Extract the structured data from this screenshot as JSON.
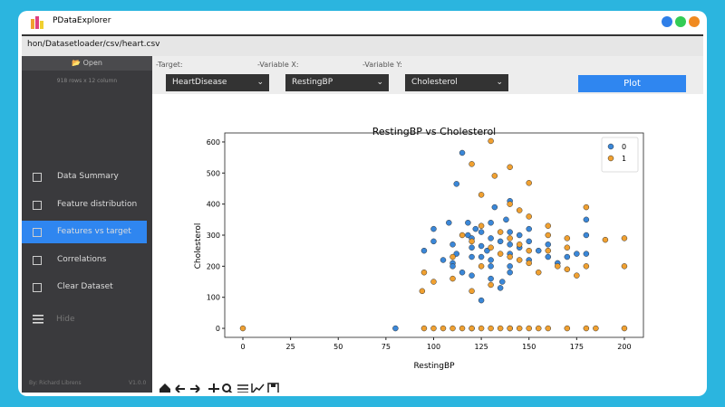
{
  "window": {
    "title": "PDataExplorer"
  },
  "loader": {
    "path": "hon/Datasetloader/csv/heart.csv",
    "open": "Open",
    "info": "918 rows x 12 column"
  },
  "controls": {
    "target_label": "-Target:",
    "x_label": "-Variable X:",
    "y_label": "-Variable Y:",
    "target": "HeartDisease",
    "x": "RestingBP",
    "y": "Cholesterol",
    "plot": "Plot"
  },
  "menu": {
    "items": [
      "Data Summary",
      "Feature distribution",
      "Features vs target",
      "Correlations",
      "Clear Dataset"
    ],
    "hide": "Hide",
    "author": "By: Richard Librens",
    "version": "V1.0.0"
  },
  "chart_data": {
    "type": "scatter",
    "title": "RestingBP vs Cholesterol",
    "x_label": "RestingBP",
    "y_label": "Cholesterol",
    "xlim": [
      -9.5,
      210
    ],
    "xticks": [
      0,
      25,
      50,
      75,
      100,
      125,
      150,
      175,
      200
    ],
    "ylim": [
      -29,
      629
    ],
    "yticks": [
      0,
      100,
      200,
      300,
      400,
      500,
      600
    ],
    "legend": "upper right",
    "series": [
      {
        "name": "0",
        "color": "#3a87d8",
        "x": [
          110,
          120,
          130,
          140,
          120,
          130,
          125,
          115,
          140,
          150,
          135,
          128,
          118,
          145,
          160,
          112,
          122,
          138,
          130,
          140,
          120,
          125,
          150,
          155,
          110,
          100,
          105,
          95,
          108,
          130,
          120,
          140,
          132,
          140,
          118,
          145,
          160,
          170,
          180,
          180,
          112,
          115,
          130,
          135,
          125,
          110,
          140,
          150,
          125,
          180,
          80,
          175,
          165,
          136,
          100,
          120,
          140
        ],
        "values": [
          210,
          260,
          290,
          310,
          230,
          200,
          265,
          180,
          240,
          220,
          280,
          250,
          300,
          260,
          230,
          240,
          320,
          350,
          220,
          200,
          290,
          310,
          280,
          250,
          270,
          280,
          220,
          250,
          340,
          160,
          170,
          180,
          390,
          410,
          340,
          300,
          270,
          230,
          350,
          300,
          465,
          565,
          340,
          130,
          90,
          200,
          270,
          320,
          230,
          240,
          0,
          240,
          210,
          150,
          320,
          0,
          0
        ]
      },
      {
        "name": "1",
        "color": "#f0a030",
        "x": [
          130,
          120,
          140,
          132,
          150,
          125,
          140,
          145,
          150,
          160,
          170,
          180,
          190,
          200,
          200,
          160,
          170,
          140,
          150,
          130,
          120,
          110,
          115,
          125,
          135,
          145,
          155,
          130,
          120,
          100,
          95,
          94,
          110,
          140,
          150,
          160,
          170,
          180,
          125,
          135,
          145,
          0,
          95,
          100,
          110,
          115,
          120,
          125,
          130,
          135,
          140,
          145,
          150,
          155,
          160,
          170,
          180,
          185,
          200,
          105,
          165,
          175
        ],
        "values": [
          603,
          529,
          519,
          491,
          468,
          430,
          400,
          380,
          360,
          330,
          290,
          390,
          285,
          290,
          200,
          250,
          260,
          230,
          210,
          260,
          280,
          230,
          300,
          200,
          310,
          270,
          180,
          140,
          120,
          150,
          180,
          120,
          160,
          290,
          250,
          300,
          190,
          200,
          330,
          240,
          220,
          0,
          0,
          0,
          0,
          0,
          0,
          0,
          0,
          0,
          0,
          0,
          0,
          0,
          0,
          0,
          0,
          0,
          0,
          0,
          200,
          170
        ]
      }
    ]
  }
}
